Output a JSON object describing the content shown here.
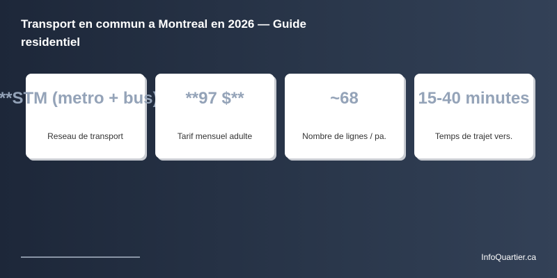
{
  "header": {
    "title": "Transport en commun a Montreal en 2026 — Guide residentiel"
  },
  "cards": [
    {
      "value": "**STM (metro + bus)**",
      "label": "Reseau de transport"
    },
    {
      "value": "**97 $**",
      "label": "Tarif mensuel adulte"
    },
    {
      "value": "~68",
      "label": "Nombre de lignes / pa."
    },
    {
      "value": "15-40 minutes",
      "label": "Temps de trajet vers."
    }
  ],
  "footer": {
    "source": "InfoQuartier.ca"
  }
}
